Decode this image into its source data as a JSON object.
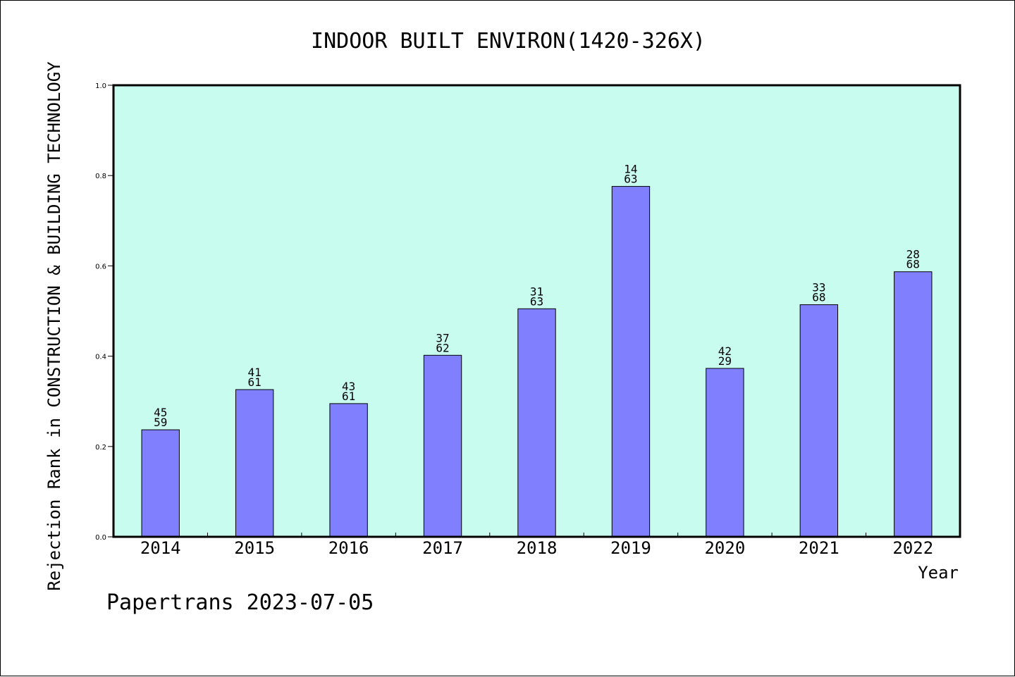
{
  "chart_data": {
    "type": "bar",
    "title": "INDOOR BUILT ENVIRON(1420-326X)",
    "xlabel": "Year",
    "ylabel": "Rejection Rank in CONSTRUCTION & BUILDING TECHNOLOGY",
    "ylim": [
      0,
      1.0
    ],
    "yticks": [
      "0.0",
      "0.2",
      "0.4",
      "0.6",
      "0.8",
      "1.0"
    ],
    "categories": [
      "2014",
      "2015",
      "2016",
      "2017",
      "2018",
      "2019",
      "2020",
      "2021",
      "2022"
    ],
    "values": [
      0.237,
      0.326,
      0.295,
      0.402,
      0.505,
      0.776,
      0.373,
      0.514,
      0.587
    ],
    "labels_top": [
      "45",
      "41",
      "43",
      "37",
      "31",
      "14",
      "42",
      "33",
      "28"
    ],
    "labels_bottom": [
      "59",
      "61",
      "61",
      "62",
      "63",
      "63",
      "29",
      "68",
      "68"
    ],
    "grid": false,
    "colors": {
      "plot_bg": "#c8fcee",
      "bar": "#8080ff",
      "axis": "#000000"
    }
  },
  "footer": {
    "text": "Papertrans 2023-07-05"
  }
}
